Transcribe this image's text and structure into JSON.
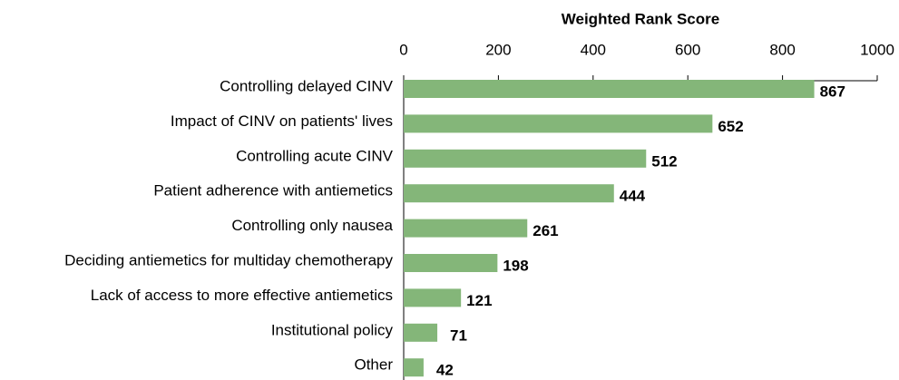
{
  "chart_data": {
    "type": "bar",
    "orientation": "horizontal",
    "x_label": "Weighted Rank Score",
    "categories": [
      "Controlling delayed CINV",
      "Impact of CINV on patients' lives",
      "Controlling acute CINV",
      "Patient adherence with antiemetics",
      "Controlling only nausea",
      "Deciding antiemetics for multiday chemotherapy",
      "Lack of access to more effective antiemetics",
      "Institutional policy",
      "Other"
    ],
    "values": [
      867,
      652,
      512,
      444,
      261,
      198,
      121,
      71,
      42
    ],
    "color": "#84b679",
    "xlim": [
      0,
      1000
    ],
    "xticks": [
      0,
      200,
      400,
      600,
      800,
      1000
    ],
    "grid": false
  }
}
